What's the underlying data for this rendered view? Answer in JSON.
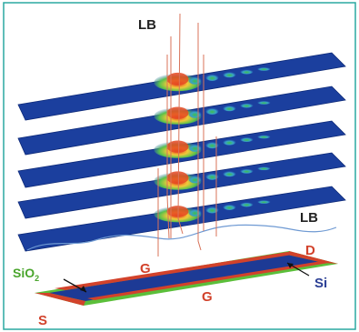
{
  "labels": {
    "lb_top": "LB",
    "lb_right": "LB",
    "source": "S",
    "drain": "D",
    "gate_top": "G",
    "gate_bottom": "G",
    "silicon": "Si",
    "oxide_main": "SiO",
    "oxide_sub": "2"
  },
  "colors": {
    "frame": "#2aa9a0",
    "plane": "#1b3f9e",
    "plane_edge": "#0e2a78",
    "oxide": "#5bbf3a",
    "gate": "#d2422b",
    "channel": "#1d3a95",
    "lb_line": "#6f9ad3",
    "trace": "#d8735a",
    "label_dark": "#222222",
    "label_red": "#d2422b",
    "label_blue": "#2b3f95",
    "label_green": "#4aa52d"
  },
  "planes": [
    {
      "peak": 1.0
    },
    {
      "peak": 0.95
    },
    {
      "peak": 0.95
    },
    {
      "peak": 1.0
    },
    {
      "peak": 0.9
    }
  ]
}
